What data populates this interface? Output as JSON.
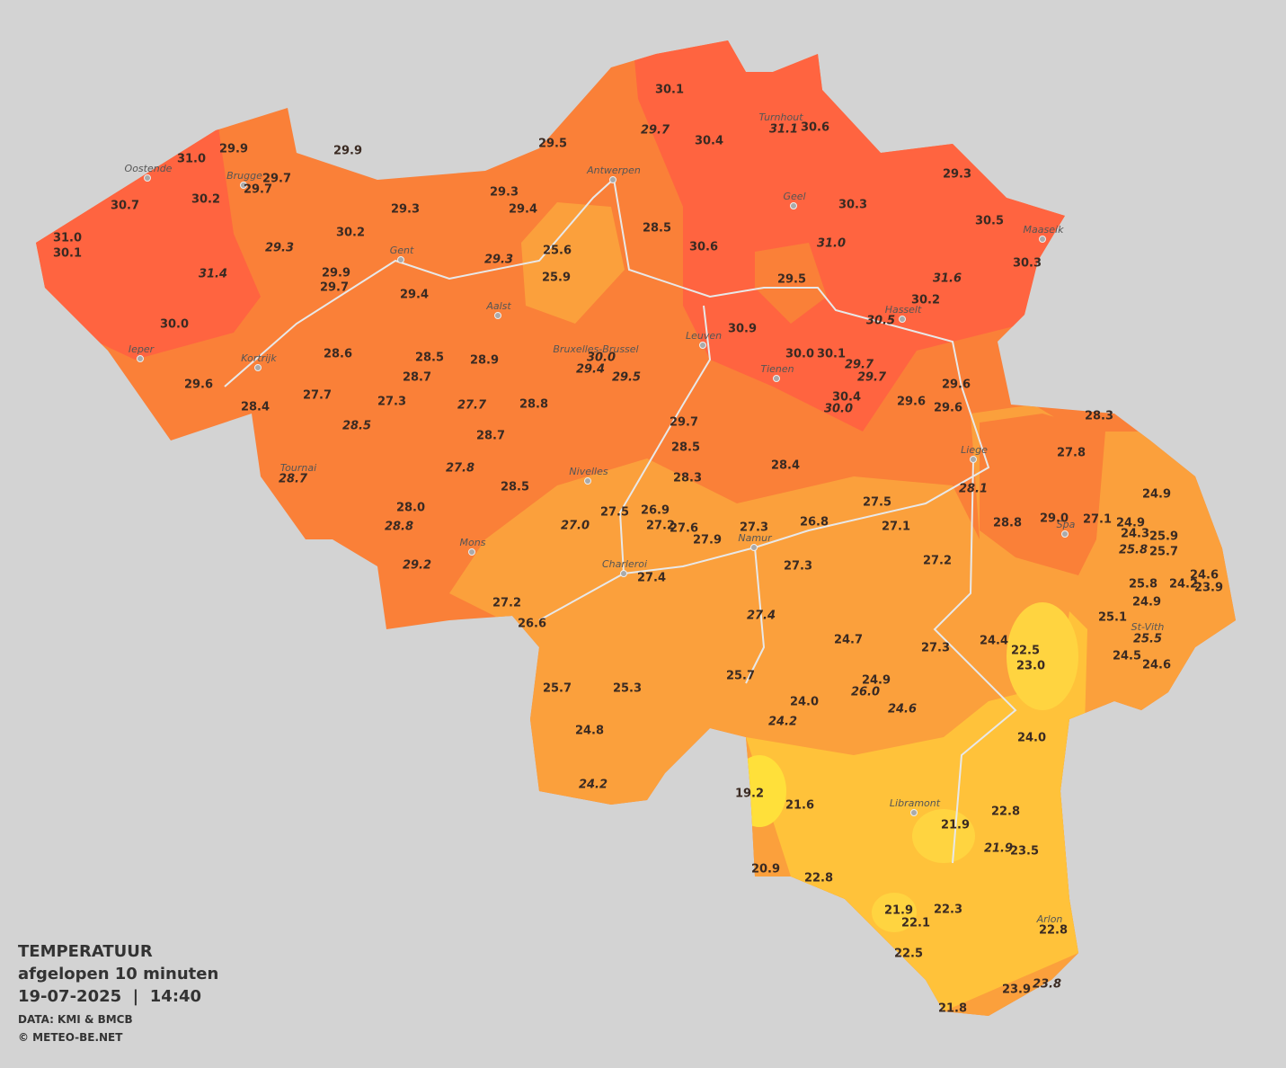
{
  "map": {
    "legend": {
      "title": "TEMPERATUUR",
      "subtitle": "afgelopen 10 minuten",
      "timestamp": "19-07-2025  |  14:40",
      "source": "DATA: KMI & BMCB",
      "credit": "© METEO-BE.NET"
    },
    "cities": [
      "Oostende",
      "Brugge",
      "Antwerpen",
      "Turnhout",
      "Geel",
      "Maaseik",
      "Gent",
      "Aalst",
      "Hasselt",
      "Leuven",
      "Bruxelles-Brussel",
      "Ieper",
      "Kortrijk",
      "Tienen",
      "Liege",
      "Tournai",
      "Nivelles",
      "Spa",
      "Mons",
      "Namur",
      "Charleroi",
      "St-Vith",
      "Libramont",
      "Arlon"
    ],
    "readings": [
      "30.1",
      "29.7",
      "30.4",
      "31.1",
      "30.6",
      "29.5",
      "29.9",
      "29.9",
      "31.0",
      "29.7",
      "29.7",
      "30.7",
      "30.2",
      "29.3",
      "29.3",
      "30.3",
      "29.4",
      "29.3",
      "30.2",
      "28.5",
      "30.5",
      "31.0",
      "30.1",
      "29.3",
      "25.6",
      "30.6",
      "31.0",
      "30.3",
      "29.3",
      "31.4",
      "29.9",
      "29.7",
      "25.9",
      "29.5",
      "31.6",
      "29.4",
      "30.2",
      "30.5",
      "30.0",
      "30.9",
      "28.6",
      "28.5",
      "28.9",
      "30.0",
      "30.0",
      "30.1",
      "29.4",
      "29.5",
      "28.7",
      "29.7",
      "29.7",
      "29.6",
      "29.6",
      "27.7",
      "27.3",
      "27.7",
      "28.8",
      "30.4",
      "30.0",
      "29.6",
      "29.6",
      "28.4",
      "28.3",
      "29.7",
      "28.5",
      "28.7",
      "28.5",
      "27.8",
      "27.8",
      "28.4",
      "28.7",
      "28.3",
      "28.5",
      "28.1",
      "24.9",
      "27.5",
      "28.0",
      "27.5",
      "26.9",
      "29.0",
      "27.1",
      "24.9",
      "27.0",
      "28.8",
      "27.2",
      "27.6",
      "27.3",
      "26.8",
      "27.1",
      "28.8",
      "24.3",
      "25.9",
      "27.9",
      "25.8",
      "25.7",
      "29.2",
      "27.3",
      "27.2",
      "27.4",
      "24.6",
      "25.8",
      "24.2",
      "23.9",
      "24.9",
      "27.2",
      "27.4",
      "25.1",
      "26.6",
      "24.7",
      "24.4",
      "27.3",
      "22.5",
      "25.5",
      "24.5",
      "23.0",
      "24.6",
      "25.7",
      "24.9",
      "25.7",
      "25.3",
      "26.0",
      "24.0",
      "24.6",
      "24.2",
      "24.8",
      "24.0",
      "24.2",
      "19.2",
      "21.6",
      "22.8",
      "21.9",
      "21.9",
      "23.5",
      "20.9",
      "22.8",
      "21.9",
      "22.3",
      "22.1",
      "22.8",
      "22.5",
      "23.9",
      "23.8",
      "21.8"
    ]
  }
}
